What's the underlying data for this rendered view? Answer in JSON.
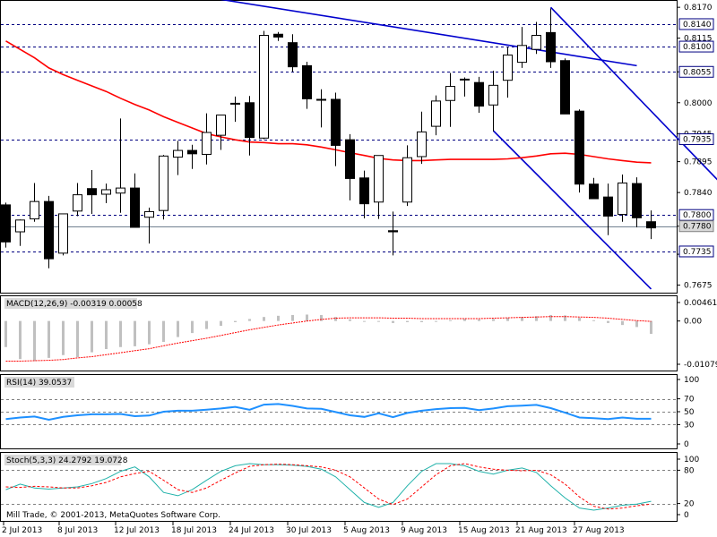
{
  "chart_data": {
    "type": "candlestick",
    "x_labels": [
      "2 Jul 2013",
      "8 Jul 2013",
      "12 Jul 2013",
      "18 Jul 2013",
      "24 Jul 2013",
      "30 Jul 2013",
      "5 Aug 2013",
      "9 Aug 2013",
      "15 Aug 2013",
      "21 Aug 2013",
      "27 Aug 2013"
    ],
    "price_axis": {
      "ticks": [
        "0.8170",
        "0.8115",
        "0.8055",
        "0.8000",
        "0.7945",
        "0.7895",
        "0.7840",
        "0.7780",
        "0.7730",
        "0.7675"
      ],
      "levels": [
        "0.8140",
        "0.8100",
        "0.8055",
        "0.7935",
        "0.7800",
        "0.7735"
      ],
      "current": "0.7780"
    },
    "candles": [
      [
        0.7818,
        0.7822,
        0.7742,
        0.7752
      ],
      [
        0.777,
        0.7792,
        0.7745,
        0.7791
      ],
      [
        0.7793,
        0.7857,
        0.7788,
        0.7824
      ],
      [
        0.7824,
        0.7834,
        0.7705,
        0.7722
      ],
      [
        0.7732,
        0.7802,
        0.7728,
        0.7802
      ],
      [
        0.7807,
        0.7857,
        0.7798,
        0.7836
      ],
      [
        0.7847,
        0.788,
        0.7802,
        0.7836
      ],
      [
        0.7837,
        0.7856,
        0.7821,
        0.7845
      ],
      [
        0.7839,
        0.7972,
        0.7804,
        0.7848
      ],
      [
        0.7848,
        0.7874,
        0.778,
        0.7778
      ],
      [
        0.7796,
        0.7813,
        0.7749,
        0.7806
      ],
      [
        0.7808,
        0.7907,
        0.7792,
        0.7905
      ],
      [
        0.7903,
        0.7932,
        0.7871,
        0.7915
      ],
      [
        0.7915,
        0.7925,
        0.7882,
        0.7909
      ],
      [
        0.7908,
        0.7981,
        0.789,
        0.7947
      ],
      [
        0.7942,
        0.7974,
        0.7916,
        0.7978
      ],
      [
        0.7999,
        0.8011,
        0.7966,
        0.7999
      ],
      [
        0.8,
        0.8012,
        0.7906,
        0.7938
      ],
      [
        0.7937,
        0.8128,
        0.7935,
        0.812
      ],
      [
        0.8122,
        0.8126,
        0.811,
        0.8117
      ],
      [
        0.8107,
        0.8122,
        0.8055,
        0.8064
      ],
      [
        0.8066,
        0.8073,
        0.7989,
        0.8007
      ],
      [
        0.8006,
        0.8024,
        0.7956,
        0.8006
      ],
      [
        0.8006,
        0.8018,
        0.7887,
        0.7924
      ],
      [
        0.7934,
        0.7944,
        0.7826,
        0.7865
      ],
      [
        0.7866,
        0.7879,
        0.7794,
        0.782
      ],
      [
        0.7823,
        0.7906,
        0.7793,
        0.7906
      ],
      [
        0.7772,
        0.7806,
        0.7728,
        0.777
      ],
      [
        0.7823,
        0.7924,
        0.7816,
        0.7902
      ],
      [
        0.7904,
        0.7984,
        0.7891,
        0.7948
      ],
      [
        0.7958,
        0.8013,
        0.7942,
        0.8003
      ],
      [
        0.8004,
        0.8053,
        0.7957,
        0.8029
      ],
      [
        0.8042,
        0.8045,
        0.8011,
        0.8041
      ],
      [
        0.8036,
        0.8046,
        0.7982,
        0.7994
      ],
      [
        0.7996,
        0.8057,
        0.7949,
        0.8031
      ],
      [
        0.804,
        0.8099,
        0.8009,
        0.8085
      ],
      [
        0.8072,
        0.8135,
        0.8062,
        0.8102
      ],
      [
        0.8095,
        0.8144,
        0.8087,
        0.812
      ],
      [
        0.8125,
        0.8168,
        0.8062,
        0.8073
      ],
      [
        0.8075,
        0.8079,
        0.798,
        0.798
      ],
      [
        0.7985,
        0.7988,
        0.784,
        0.7855
      ],
      [
        0.7855,
        0.7866,
        0.783,
        0.7829
      ],
      [
        0.7832,
        0.7856,
        0.7764,
        0.7798
      ],
      [
        0.7801,
        0.7872,
        0.7788,
        0.7857
      ],
      [
        0.7856,
        0.7867,
        0.7778,
        0.7795
      ],
      [
        0.7788,
        0.7808,
        0.7757,
        0.7777
      ]
    ],
    "ma": [
      0.811,
      0.8095,
      0.808,
      0.8062,
      0.805,
      0.804,
      0.803,
      0.802,
      0.8008,
      0.7997,
      0.7987,
      0.7975,
      0.7965,
      0.7955,
      0.7945,
      0.7939,
      0.7934,
      0.793,
      0.7929,
      0.7927,
      0.7927,
      0.7925,
      0.7921,
      0.7916,
      0.7911,
      0.7906,
      0.7901,
      0.7898,
      0.7897,
      0.7897,
      0.7898,
      0.7899,
      0.7899,
      0.7899,
      0.7899,
      0.79,
      0.7902,
      0.7905,
      0.7909,
      0.791,
      0.7908,
      0.7904,
      0.79,
      0.7897,
      0.7894,
      0.7893
    ],
    "trendlines": [
      {
        "x1": 0,
        "y1": 0.8245,
        "x2": 44,
        "y2": 0.8066
      },
      {
        "x1": 38,
        "y1": 0.817,
        "x2": 52,
        "y2": 0.78
      },
      {
        "x1": 34,
        "y1": 0.795,
        "x2": 45,
        "y2": 0.7668
      }
    ],
    "macd": {
      "label": "MACD(12,26,9) -0.00319 0.00058",
      "ticks": [
        "0.00461",
        "0.00",
        "-0.01079"
      ],
      "hist": [
        -0.0065,
        -0.0095,
        -0.01,
        -0.0092,
        -0.0085,
        -0.009,
        -0.0078,
        -0.007,
        -0.0065,
        -0.0063,
        -0.0058,
        -0.0052,
        -0.004,
        -0.003,
        -0.002,
        -0.0012,
        -0.0003,
        0.0005,
        0.001,
        0.0013,
        0.0015,
        0.0016,
        0.0015,
        0.001,
        0.0004,
        -0.0002,
        -0.0002,
        -0.0005,
        -0.0003,
        -0.0003,
        -0.0001,
        0.0002,
        0.0005,
        0.0004,
        0.0005,
        0.0008,
        0.001,
        0.0012,
        0.0015,
        0.0014,
        0.0008,
        0.0002,
        -0.0005,
        -0.001,
        -0.0015,
        -0.0032
      ],
      "signal": [
        -0.01,
        -0.01,
        -0.0099,
        -0.0098,
        -0.0096,
        -0.0092,
        -0.0089,
        -0.0084,
        -0.0079,
        -0.0074,
        -0.0069,
        -0.0062,
        -0.0055,
        -0.0049,
        -0.0043,
        -0.0036,
        -0.0029,
        -0.0022,
        -0.0016,
        -0.001,
        -0.0005,
        0.0,
        0.0004,
        0.0007,
        0.0008,
        0.0008,
        0.0008,
        0.0007,
        0.0007,
        0.0006,
        0.0006,
        0.0006,
        0.0006,
        0.0006,
        0.0007,
        0.0008,
        0.0009,
        0.001,
        0.0011,
        0.0011,
        0.001,
        0.0009,
        0.0007,
        0.0004,
        0.0001,
        -0.0001
      ]
    },
    "rsi": {
      "label": "RSI(14) 39.0537",
      "ticks": [
        "100",
        "70",
        "50",
        "30",
        "0"
      ],
      "values": [
        38.5,
        41.0,
        42.5,
        37.5,
        42.0,
        44.5,
        46.0,
        46.0,
        46.5,
        43.0,
        44.0,
        50.0,
        51.5,
        51.5,
        53.0,
        55.0,
        57.5,
        53.0,
        61.0,
        62.0,
        59.0,
        55.0,
        54.5,
        49.5,
        44.5,
        42.0,
        47.5,
        41.5,
        48.0,
        51.5,
        54.0,
        55.5,
        56.0,
        52.5,
        55.0,
        58.5,
        59.5,
        60.5,
        55.5,
        48.5,
        41.0,
        40.0,
        38.5,
        41.0,
        39.0,
        39.0
      ]
    },
    "stoch": {
      "label": "Stoch(5,3,3) 24.2792 19.0728",
      "ticks": [
        "100",
        "80",
        "20",
        "0"
      ],
      "k": [
        45,
        55,
        48,
        46,
        48,
        50,
        56,
        65,
        78,
        86,
        68,
        40,
        34,
        45,
        62,
        78,
        88,
        92,
        90,
        90,
        89,
        87,
        82,
        68,
        45,
        22,
        13,
        22,
        52,
        78,
        92,
        92,
        88,
        78,
        73,
        80,
        84,
        76,
        52,
        30,
        12,
        8,
        12,
        17,
        19,
        24
      ],
      "d": [
        50,
        49,
        51,
        50,
        48,
        48,
        52,
        58,
        68,
        74,
        78,
        62,
        45,
        40,
        48,
        62,
        75,
        87,
        90,
        91,
        90,
        88,
        86,
        80,
        68,
        48,
        28,
        18,
        28,
        50,
        72,
        88,
        92,
        86,
        82,
        80,
        79,
        80,
        72,
        55,
        32,
        15,
        10,
        12,
        16,
        19
      ]
    }
  },
  "copyright": "Mill Trade, © 2001-2013, MetaQuotes Software Corp.",
  "colors": {
    "candle_up_fill": "#ffffff",
    "candle_down_fill": "#000000",
    "ma": "#ff0000",
    "trend": "#0000cd",
    "level_line": "#000080",
    "level_tag_bg": "#ffffff",
    "current_tag_bg": "#d9d9d9",
    "macd_hist": "#c0c0c0",
    "macd_signal": "#ff0000",
    "rsi": "#1e90ff",
    "stoch_k": "#20b2aa",
    "stoch_d": "#ff0000"
  }
}
